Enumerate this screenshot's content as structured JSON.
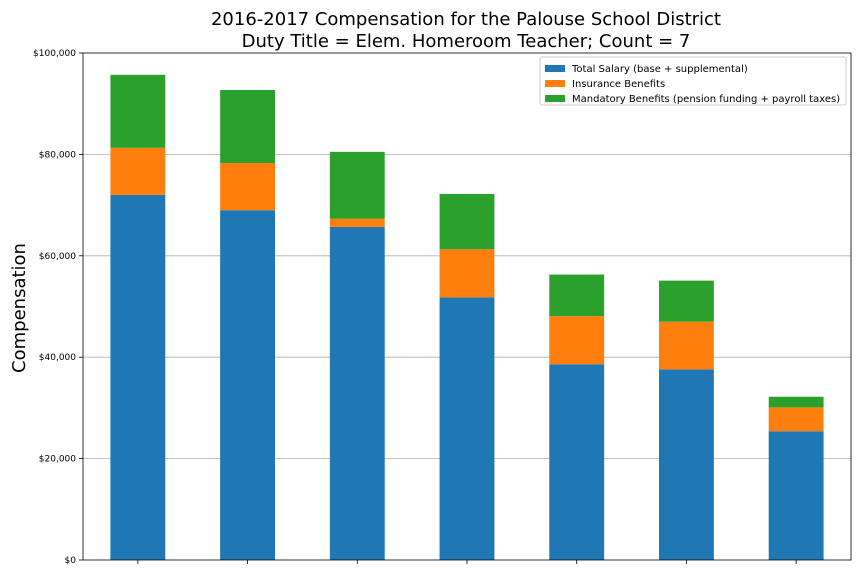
{
  "chart_data": {
    "type": "bar",
    "stacked": true,
    "title": "2016-2017 Compensation for the Palouse School District",
    "subtitle": "Duty Title = Elem. Homeroom Teacher; Count = 7",
    "xlabel": "",
    "ylabel": "Compensation",
    "ylim": [
      0,
      100000
    ],
    "yticks": [
      0,
      20000,
      40000,
      60000,
      80000,
      100000
    ],
    "ytick_labels": [
      "$0",
      "$20,000",
      "$40,000",
      "$60,000",
      "$80,000",
      "$100,000"
    ],
    "grid": "horizontal",
    "legend_position": "top-right",
    "categories": [
      "",
      "",
      "",
      "",
      "",
      "",
      ""
    ],
    "series": [
      {
        "name": "Total Salary (base + supplemental)",
        "color": "#1f77b4",
        "values": [
          72000,
          69000,
          65700,
          51800,
          38600,
          37600,
          25400
        ]
      },
      {
        "name": "Insurance Benefits",
        "color": "#ff7f0e",
        "values": [
          9300,
          9300,
          1600,
          9500,
          9500,
          9400,
          4700
        ]
      },
      {
        "name": "Mandatory Benefits (pension funding + payroll taxes)",
        "color": "#2ca02c",
        "values": [
          14400,
          14400,
          13200,
          10900,
          8200,
          8100,
          2100
        ]
      }
    ]
  }
}
